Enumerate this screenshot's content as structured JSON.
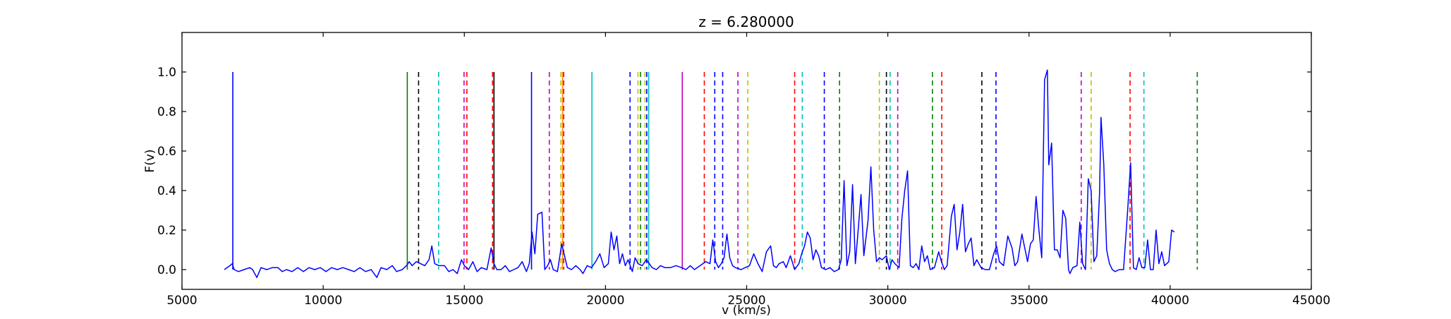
{
  "chart_data": {
    "type": "line",
    "title": "z = 6.280000",
    "xlabel": "v (km/s)",
    "ylabel": "F(v)",
    "xlim": [
      5000,
      45000
    ],
    "ylim": [
      -0.1,
      1.2
    ],
    "xticks": [
      5000,
      10000,
      15000,
      20000,
      25000,
      30000,
      35000,
      40000,
      45000
    ],
    "yticks": [
      0.0,
      0.2,
      0.4,
      0.6,
      0.8,
      1.0
    ],
    "ytick_labels": [
      "0.0",
      "0.2",
      "0.4",
      "0.6",
      "0.8",
      "1.0"
    ],
    "grid": false,
    "series": [
      {
        "color": "#0000ff",
        "points": [
          [
            6500,
            0.0
          ],
          [
            6700,
            0.02
          ],
          [
            6780,
            0.03
          ],
          [
            6850,
            0.0
          ],
          [
            7000,
            -0.01
          ],
          [
            7200,
            0.0
          ],
          [
            7400,
            0.01
          ],
          [
            7500,
            0.0
          ],
          [
            7650,
            -0.04
          ],
          [
            7800,
            0.01
          ],
          [
            8000,
            0.0
          ],
          [
            8200,
            0.01
          ],
          [
            8400,
            0.01
          ],
          [
            8550,
            -0.01
          ],
          [
            8700,
            0.0
          ],
          [
            8900,
            -0.01
          ],
          [
            9100,
            0.01
          ],
          [
            9300,
            -0.01
          ],
          [
            9500,
            0.01
          ],
          [
            9700,
            0.0
          ],
          [
            9900,
            0.01
          ],
          [
            10100,
            -0.01
          ],
          [
            10300,
            0.01
          ],
          [
            10500,
            0.0
          ],
          [
            10700,
            0.01
          ],
          [
            10900,
            0.0
          ],
          [
            11100,
            -0.01
          ],
          [
            11300,
            0.01
          ],
          [
            11500,
            -0.01
          ],
          [
            11700,
            0.0
          ],
          [
            11900,
            -0.04
          ],
          [
            12050,
            0.01
          ],
          [
            12250,
            0.0
          ],
          [
            12450,
            0.02
          ],
          [
            12600,
            -0.01
          ],
          [
            12800,
            0.0
          ],
          [
            12950,
            0.02
          ],
          [
            13050,
            0.04
          ],
          [
            13150,
            0.02
          ],
          [
            13300,
            0.04
          ],
          [
            13450,
            0.03
          ],
          [
            13600,
            0.02
          ],
          [
            13750,
            0.05
          ],
          [
            13850,
            0.12
          ],
          [
            13950,
            0.03
          ],
          [
            14100,
            0.02
          ],
          [
            14300,
            0.02
          ],
          [
            14450,
            -0.01
          ],
          [
            14600,
            0.0
          ],
          [
            14750,
            -0.02
          ],
          [
            14900,
            0.05
          ],
          [
            15000,
            0.02
          ],
          [
            15150,
            0.0
          ],
          [
            15300,
            0.04
          ],
          [
            15450,
            -0.01
          ],
          [
            15600,
            0.01
          ],
          [
            15800,
            0.0
          ],
          [
            15950,
            0.11
          ],
          [
            16050,
            0.03
          ],
          [
            16150,
            0.0
          ],
          [
            16300,
            0.0
          ],
          [
            16450,
            0.02
          ],
          [
            16600,
            -0.01
          ],
          [
            16750,
            0.0
          ],
          [
            16900,
            0.01
          ],
          [
            17050,
            0.04
          ],
          [
            17200,
            -0.01
          ],
          [
            17300,
            0.03
          ],
          [
            17400,
            0.19
          ],
          [
            17500,
            0.08
          ],
          [
            17600,
            0.28
          ],
          [
            17750,
            0.29
          ],
          [
            17850,
            0.0
          ],
          [
            17950,
            0.02
          ],
          [
            18050,
            0.05
          ],
          [
            18150,
            0.0
          ],
          [
            18300,
            -0.01
          ],
          [
            18450,
            0.13
          ],
          [
            18550,
            0.07
          ],
          [
            18650,
            0.01
          ],
          [
            18800,
            0.0
          ],
          [
            18950,
            0.02
          ],
          [
            19100,
            0.0
          ],
          [
            19200,
            -0.02
          ],
          [
            19350,
            0.02
          ],
          [
            19500,
            0.01
          ],
          [
            19650,
            0.04
          ],
          [
            19800,
            0.08
          ],
          [
            19950,
            0.01
          ],
          [
            20100,
            0.03
          ],
          [
            20200,
            0.19
          ],
          [
            20300,
            0.1
          ],
          [
            20400,
            0.17
          ],
          [
            20500,
            0.03
          ],
          [
            20600,
            0.08
          ],
          [
            20700,
            0.02
          ],
          [
            20800,
            0.05
          ],
          [
            20950,
            -0.01
          ],
          [
            21050,
            0.06
          ],
          [
            21150,
            0.03
          ],
          [
            21300,
            0.02
          ],
          [
            21450,
            0.05
          ],
          [
            21550,
            0.03
          ],
          [
            21650,
            0.01
          ],
          [
            21800,
            0.0
          ],
          [
            21950,
            0.02
          ],
          [
            22100,
            0.01
          ],
          [
            22300,
            0.01
          ],
          [
            22500,
            0.02
          ],
          [
            22700,
            0.01
          ],
          [
            22850,
            0.0
          ],
          [
            23000,
            0.02
          ],
          [
            23150,
            0.0
          ],
          [
            23350,
            0.02
          ],
          [
            23550,
            0.04
          ],
          [
            23700,
            0.03
          ],
          [
            23800,
            0.15
          ],
          [
            23900,
            0.04
          ],
          [
            24000,
            0.01
          ],
          [
            24100,
            0.03
          ],
          [
            24200,
            0.06
          ],
          [
            24300,
            0.18
          ],
          [
            24400,
            0.06
          ],
          [
            24500,
            0.02
          ],
          [
            24600,
            0.01
          ],
          [
            24800,
            0.0
          ],
          [
            24950,
            0.01
          ],
          [
            25100,
            0.02
          ],
          [
            25250,
            0.08
          ],
          [
            25400,
            0.03
          ],
          [
            25550,
            -0.01
          ],
          [
            25700,
            0.09
          ],
          [
            25850,
            0.12
          ],
          [
            25950,
            0.02
          ],
          [
            26050,
            0.01
          ],
          [
            26150,
            0.03
          ],
          [
            26300,
            0.04
          ],
          [
            26400,
            0.01
          ],
          [
            26550,
            0.07
          ],
          [
            26700,
            0.0
          ],
          [
            26850,
            0.03
          ],
          [
            26950,
            0.08
          ],
          [
            27050,
            0.12
          ],
          [
            27150,
            0.19
          ],
          [
            27250,
            0.16
          ],
          [
            27350,
            0.05
          ],
          [
            27450,
            0.1
          ],
          [
            27550,
            0.07
          ],
          [
            27650,
            0.01
          ],
          [
            27800,
            0.0
          ],
          [
            27950,
            0.01
          ],
          [
            28100,
            -0.01
          ],
          [
            28250,
            0.0
          ],
          [
            28350,
            0.05
          ],
          [
            28450,
            0.45
          ],
          [
            28550,
            0.02
          ],
          [
            28650,
            0.09
          ],
          [
            28750,
            0.43
          ],
          [
            28850,
            0.03
          ],
          [
            28950,
            0.2
          ],
          [
            29050,
            0.38
          ],
          [
            29150,
            0.07
          ],
          [
            29300,
            0.25
          ],
          [
            29400,
            0.52
          ],
          [
            29500,
            0.2
          ],
          [
            29600,
            0.04
          ],
          [
            29700,
            0.06
          ],
          [
            29800,
            0.05
          ],
          [
            29950,
            0.07
          ],
          [
            30050,
            0.0
          ],
          [
            30150,
            0.05
          ],
          [
            30250,
            0.03
          ],
          [
            30400,
            0.01
          ],
          [
            30500,
            0.26
          ],
          [
            30600,
            0.4
          ],
          [
            30700,
            0.5
          ],
          [
            30800,
            0.02
          ],
          [
            30900,
            0.01
          ],
          [
            31000,
            0.03
          ],
          [
            31100,
            0.0
          ],
          [
            31200,
            0.12
          ],
          [
            31300,
            0.04
          ],
          [
            31400,
            0.07
          ],
          [
            31500,
            0.0
          ],
          [
            31650,
            0.01
          ],
          [
            31800,
            0.09
          ],
          [
            31900,
            0.04
          ],
          [
            32000,
            0.0
          ],
          [
            32100,
            0.02
          ],
          [
            32250,
            0.27
          ],
          [
            32350,
            0.33
          ],
          [
            32450,
            0.1
          ],
          [
            32550,
            0.19
          ],
          [
            32650,
            0.33
          ],
          [
            32750,
            0.09
          ],
          [
            32850,
            0.13
          ],
          [
            32950,
            0.16
          ],
          [
            33050,
            0.02
          ],
          [
            33150,
            0.05
          ],
          [
            33300,
            0.01
          ],
          [
            33450,
            0.0
          ],
          [
            33600,
            0.0
          ],
          [
            33750,
            0.08
          ],
          [
            33850,
            0.12
          ],
          [
            33950,
            0.04
          ],
          [
            34100,
            0.02
          ],
          [
            34250,
            0.17
          ],
          [
            34400,
            0.11
          ],
          [
            34500,
            0.02
          ],
          [
            34600,
            0.04
          ],
          [
            34750,
            0.18
          ],
          [
            34850,
            0.11
          ],
          [
            34950,
            0.04
          ],
          [
            35050,
            0.13
          ],
          [
            35150,
            0.15
          ],
          [
            35250,
            0.37
          ],
          [
            35350,
            0.2
          ],
          [
            35450,
            0.06
          ],
          [
            35550,
            0.96
          ],
          [
            35650,
            1.01
          ],
          [
            35700,
            0.53
          ],
          [
            35800,
            0.64
          ],
          [
            35900,
            0.1
          ],
          [
            36000,
            0.1
          ],
          [
            36100,
            0.06
          ],
          [
            36200,
            0.3
          ],
          [
            36300,
            0.26
          ],
          [
            36400,
            0.0
          ],
          [
            36450,
            -0.02
          ],
          [
            36550,
            0.01
          ],
          [
            36700,
            0.02
          ],
          [
            36800,
            0.24
          ],
          [
            36900,
            0.03
          ],
          [
            37000,
            0.0
          ],
          [
            37100,
            0.46
          ],
          [
            37200,
            0.4
          ],
          [
            37300,
            0.04
          ],
          [
            37400,
            0.07
          ],
          [
            37500,
            0.39
          ],
          [
            37550,
            0.77
          ],
          [
            37650,
            0.53
          ],
          [
            37750,
            0.1
          ],
          [
            37850,
            0.03
          ],
          [
            37950,
            0.0
          ],
          [
            38050,
            -0.01
          ],
          [
            38200,
            0.0
          ],
          [
            38350,
            0.0
          ],
          [
            38500,
            0.31
          ],
          [
            38600,
            0.54
          ],
          [
            38700,
            0.01
          ],
          [
            38800,
            0.0
          ],
          [
            38900,
            0.06
          ],
          [
            39000,
            0.01
          ],
          [
            39100,
            0.01
          ],
          [
            39200,
            0.15
          ],
          [
            39300,
            0.0
          ],
          [
            39400,
            0.0
          ],
          [
            39500,
            0.2
          ],
          [
            39600,
            0.03
          ],
          [
            39700,
            0.09
          ],
          [
            39800,
            0.02
          ],
          [
            39950,
            0.04
          ],
          [
            40050,
            0.2
          ],
          [
            40150,
            0.19
          ]
        ]
      }
    ],
    "solid_lines": [
      {
        "x": 6800,
        "color": "#0000ff"
      },
      {
        "x": 12980,
        "color": "#008000"
      },
      {
        "x": 16050,
        "color": "#000000"
      },
      {
        "x": 17380,
        "color": "#0000ff"
      },
      {
        "x": 18480,
        "color": "#ff7f00"
      },
      {
        "x": 19520,
        "color": "#00bfbf"
      },
      {
        "x": 21530,
        "color": "#00bfbf"
      },
      {
        "x": 22720,
        "color": "#bf00bf"
      }
    ],
    "dashed_lines": [
      {
        "x": 13380,
        "color": "#000000"
      },
      {
        "x": 14090,
        "color": "#00bfbf"
      },
      {
        "x": 14990,
        "color": "#bf00bf"
      },
      {
        "x": 15090,
        "color": "#ff0000"
      },
      {
        "x": 16000,
        "color": "#ff0000"
      },
      {
        "x": 18010,
        "color": "#bf00bf"
      },
      {
        "x": 18420,
        "color": "#bfbf00"
      },
      {
        "x": 18520,
        "color": "#ff0000"
      },
      {
        "x": 20870,
        "color": "#0000ff"
      },
      {
        "x": 21150,
        "color": "#bfbf00"
      },
      {
        "x": 21240,
        "color": "#008000"
      },
      {
        "x": 21400,
        "color": "#bfbf00"
      },
      {
        "x": 21460,
        "color": "#0000ff"
      },
      {
        "x": 23500,
        "color": "#ff0000"
      },
      {
        "x": 23870,
        "color": "#0000ff"
      },
      {
        "x": 24150,
        "color": "#0000ff"
      },
      {
        "x": 24690,
        "color": "#bf00bf"
      },
      {
        "x": 25040,
        "color": "#bfbf00"
      },
      {
        "x": 26700,
        "color": "#ff0000"
      },
      {
        "x": 26970,
        "color": "#00bfbf"
      },
      {
        "x": 27750,
        "color": "#0000ff"
      },
      {
        "x": 28290,
        "color": "#008000"
      },
      {
        "x": 29700,
        "color": "#bfbf00"
      },
      {
        "x": 29950,
        "color": "#000000"
      },
      {
        "x": 30080,
        "color": "#00bfbf"
      },
      {
        "x": 30350,
        "color": "#bf00bf"
      },
      {
        "x": 31580,
        "color": "#008000"
      },
      {
        "x": 31910,
        "color": "#ff0000"
      },
      {
        "x": 33330,
        "color": "#000000"
      },
      {
        "x": 33830,
        "color": "#0000ff"
      },
      {
        "x": 36850,
        "color": "#bf00bf"
      },
      {
        "x": 37200,
        "color": "#bfbf00"
      },
      {
        "x": 38580,
        "color": "#ff0000"
      },
      {
        "x": 39070,
        "color": "#00bfbf"
      },
      {
        "x": 40960,
        "color": "#008000"
      }
    ],
    "marker_top": 1.0,
    "marker_bottom": 0.0
  }
}
